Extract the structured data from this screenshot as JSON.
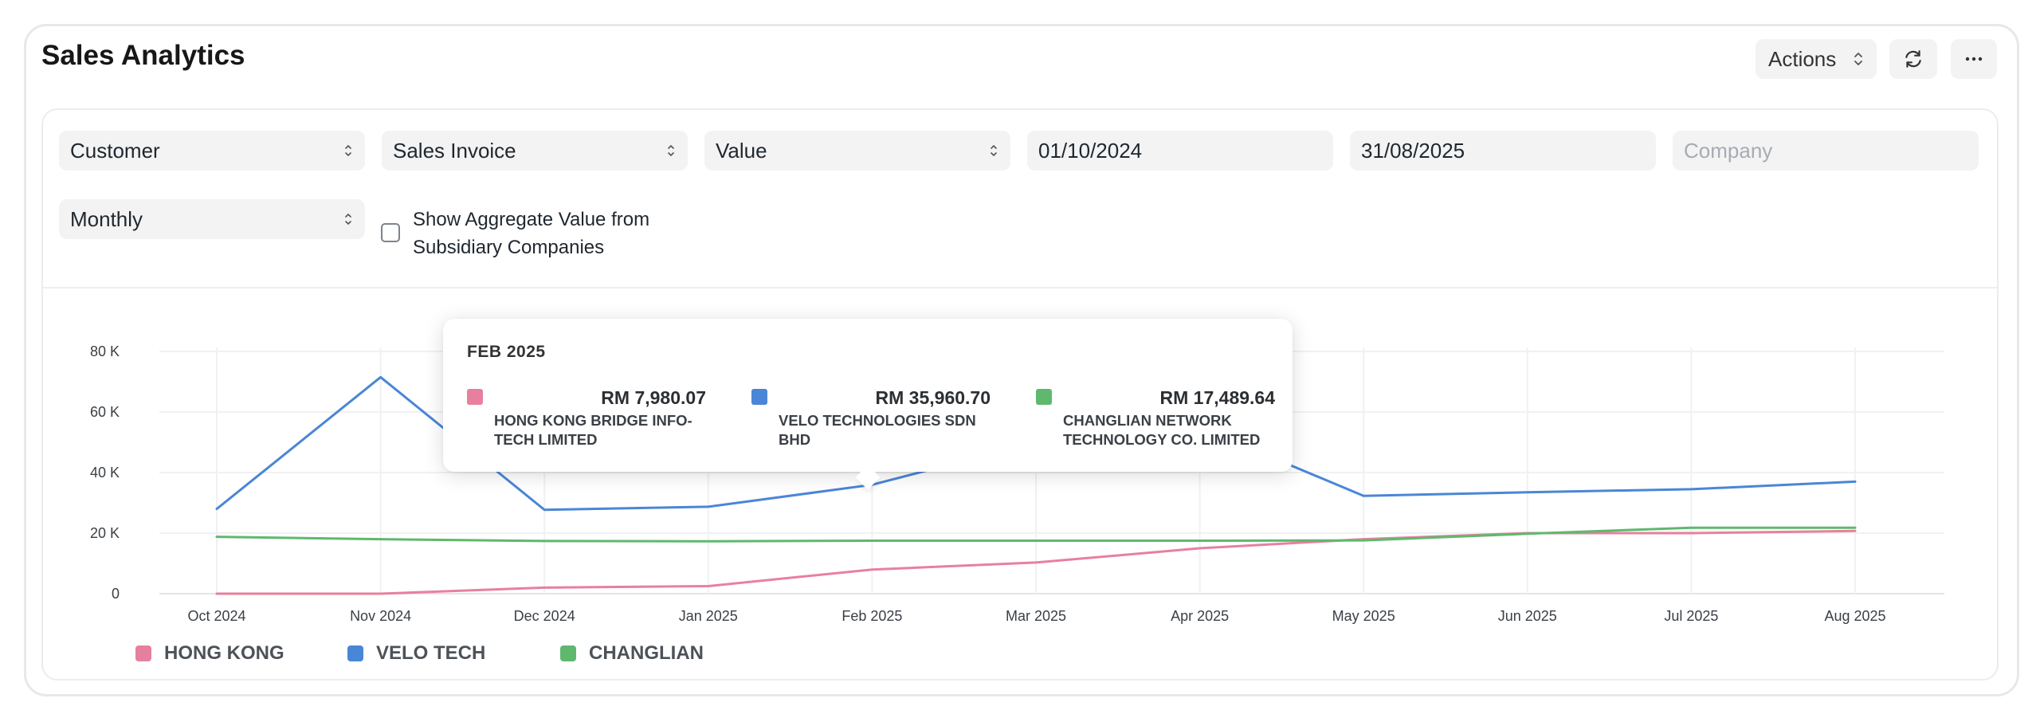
{
  "header": {
    "title": "Sales Analytics",
    "actions_label": "Actions"
  },
  "filters": {
    "tree_type": "Customer",
    "doc_type": "Sales Invoice",
    "value_quantity": "Value",
    "from_date": "01/10/2024",
    "to_date": "31/08/2025",
    "company_placeholder": "Company",
    "range": "Monthly",
    "aggregate_label": "Show Aggregate Value from Subsidiary Companies",
    "aggregate_checked": false
  },
  "chart_data": {
    "type": "line",
    "categories": [
      "Oct 2024",
      "Nov 2024",
      "Dec 2024",
      "Jan 2025",
      "Feb 2025",
      "Mar 2025",
      "Apr 2025",
      "May 2025",
      "Jun 2025",
      "Jul 2025",
      "Aug 2025"
    ],
    "y_ticks": [
      "0",
      "20 K",
      "40 K",
      "60 K",
      "80 K"
    ],
    "ylim": [
      0,
      80000
    ],
    "grid": true,
    "legend_position": "bottom-left",
    "series": [
      {
        "name": "HONG KONG",
        "color": "#e7809e",
        "values": [
          0,
          0,
          2000,
          2500,
          7980.07,
          10300,
          15000,
          18000,
          20000,
          20000,
          20700
        ]
      },
      {
        "name": "VELO TECH",
        "color": "#4a86d6",
        "values": [
          28000,
          71500,
          27700,
          28700,
          35960.7,
          50000,
          55000,
          32300,
          33500,
          34500,
          37000
        ]
      },
      {
        "name": "CHANGLIAN",
        "color": "#5fb86e",
        "values": [
          18800,
          18000,
          17400,
          17300,
          17489.64,
          17500,
          17500,
          17600,
          19800,
          21800,
          21800
        ]
      }
    ]
  },
  "legend": [
    {
      "label": "HONG KONG",
      "color": "#e7809e"
    },
    {
      "label": "VELO TECH",
      "color": "#4a86d6"
    },
    {
      "label": "CHANGLIAN",
      "color": "#5fb86e"
    }
  ],
  "tooltip": {
    "title": "FEB 2025",
    "items": [
      {
        "value": "RM 7,980.07",
        "name": "HONG KONG BRIDGE INFO-TECH LIMITED",
        "color": "#e7809e"
      },
      {
        "value": "RM 35,960.70",
        "name": "VELO TECHNOLOGIES SDN BHD",
        "color": "#4a86d6"
      },
      {
        "value": "RM 17,489.64",
        "name": "CHANGLIAN NETWORK TECHNOLOGY CO. LIMITED",
        "color": "#5fb86e"
      }
    ]
  }
}
